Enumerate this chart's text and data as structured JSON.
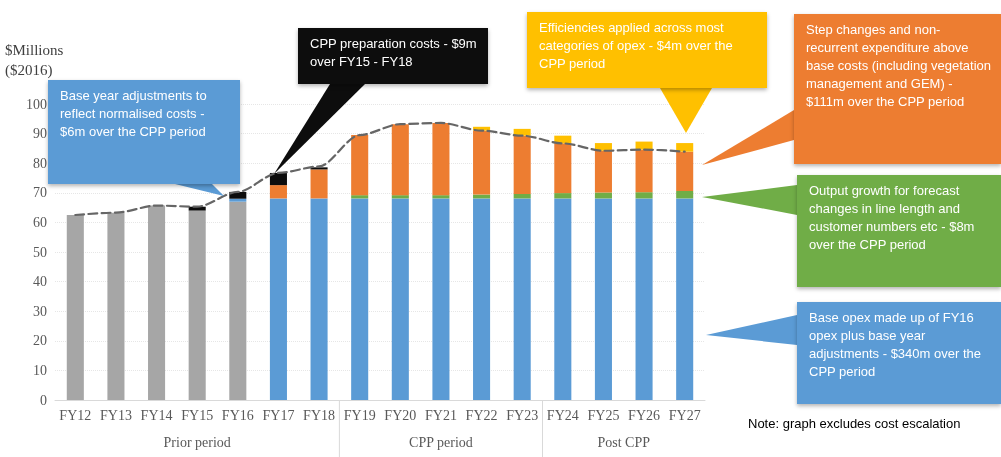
{
  "chart_data": {
    "type": "bar",
    "stacked": true,
    "ylabel": "$Millions\n($2016)",
    "categories": [
      "FY12",
      "FY13",
      "FY14",
      "FY15",
      "FY16",
      "FY17",
      "FY18",
      "FY19",
      "FY20",
      "FY21",
      "FY22",
      "FY23",
      "FY24",
      "FY25",
      "FY26",
      "FY27"
    ],
    "series": [
      {
        "color": "#a6a6a6",
        "values": [
          62.5,
          63.3,
          65.7,
          64,
          67,
          null,
          null,
          null,
          null,
          null,
          null,
          null,
          null,
          null,
          null,
          null
        ]
      },
      {
        "color": "#5b9bd5",
        "values": [
          null,
          null,
          null,
          null,
          1,
          68.1,
          68.1,
          68.1,
          68.1,
          68.1,
          68.1,
          68.1,
          68.1,
          68.1,
          68.1,
          68.1
        ]
      },
      {
        "color": "#70ad47",
        "values": [
          null,
          null,
          null,
          null,
          null,
          null,
          null,
          1.1,
          1.1,
          1.1,
          1.3,
          1.5,
          1.8,
          2,
          2.1,
          2.5
        ]
      },
      {
        "color": "#ed7d31",
        "values": [
          null,
          null,
          null,
          null,
          null,
          4.5,
          9.8,
          20.3,
          24,
          24.4,
          21.6,
          19.7,
          16.8,
          14.1,
          14.4,
          13.3
        ]
      },
      {
        "color": "#0d0d0d",
        "values": [
          null,
          null,
          null,
          1.3,
          2.3,
          4.1,
          0.7,
          null,
          null,
          null,
          null,
          null,
          null,
          null,
          null,
          null
        ]
      },
      {
        "color": "#ffc000",
        "values": [
          null,
          null,
          null,
          null,
          null,
          null,
          null,
          null,
          null,
          null,
          1.3,
          2.3,
          2.6,
          2.6,
          2.7,
          2.9
        ]
      },
      {
        "type": "line",
        "color": "#666666",
        "line_style": "dashed",
        "values": [
          62.5,
          63.3,
          65.7,
          65.3,
          70.3,
          76.7,
          78.9,
          89.5,
          93.2,
          93.6,
          91,
          89.3,
          86.7,
          84.2,
          84.6,
          83.9
        ]
      }
    ],
    "ylim": [
      0,
      100
    ],
    "yticks": [
      0,
      10,
      20,
      30,
      40,
      50,
      60,
      70,
      80,
      90,
      100
    ],
    "grid": "y",
    "marker": "none",
    "annotations": [
      "Base year adjustments to reflect normalised costs - $6m over the CPP period",
      "CPP preparation costs - $9m over FY15 - FY18",
      "Efficiencies applied across most categories of opex - $4m over the CPP period",
      "Step changes and non-recurrent expenditure above base costs (including vegetation management and GEM) - $111m over the CPP period",
      "Output growth for forecast changes in line length and customer numbers etc - $8m over the CPP period",
      "Base opex made up of FY16 opex plus base year adjustments - $340m over the CPP period",
      "Prior period",
      "CPP period",
      "Post CPP",
      "Note: graph excludes cost escalation"
    ]
  }
}
